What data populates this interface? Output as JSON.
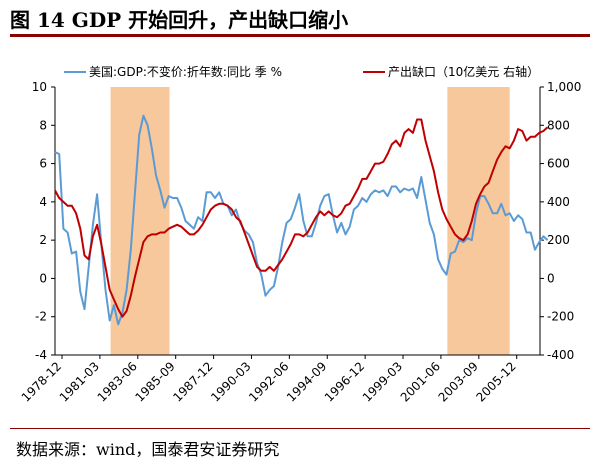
{
  "title": "图 14 GDP 开始回升，产出缺口缩小",
  "source": "数据来源：wind，国泰君安证券研究",
  "chart_data": {
    "type": "line",
    "title": "图 14 GDP 开始回升，产出缺口缩小",
    "legend_position": "top",
    "grid": false,
    "x_labels": [
      "1978-12",
      "1981-03",
      "1983-06",
      "1985-09",
      "1987-12",
      "1990-03",
      "1992-06",
      "1994-09",
      "1996-12",
      "1999-03",
      "2001-06",
      "2003-09",
      "2005-12"
    ],
    "x_range": [
      1978.5,
      2007.3
    ],
    "left_axis": {
      "ylim": [
        -4,
        10
      ],
      "ticks": [
        -4,
        -2,
        0,
        2,
        4,
        6,
        8,
        10
      ]
    },
    "right_axis": {
      "ylim": [
        -400,
        1000
      ],
      "ticks": [
        -400,
        -200,
        0,
        200,
        400,
        600,
        800,
        1000
      ]
    },
    "shaded_periods": [
      {
        "start": 1981.8,
        "end": 1985.3,
        "color": "#f7c89b"
      },
      {
        "start": 2001.8,
        "end": 2005.5,
        "color": "#f7c89b"
      }
    ],
    "series": [
      {
        "name": "美国:GDP:不变价:折年数:同比 季 %",
        "axis": "left",
        "color": "#5b9bd5",
        "points": [
          [
            1978.5,
            6.6
          ],
          [
            1978.75,
            6.5
          ],
          [
            1979.0,
            2.6
          ],
          [
            1979.25,
            2.4
          ],
          [
            1979.5,
            1.3
          ],
          [
            1979.75,
            1.4
          ],
          [
            1980.0,
            -0.7
          ],
          [
            1980.25,
            -1.6
          ],
          [
            1980.5,
            0.6
          ],
          [
            1980.75,
            2.8
          ],
          [
            1981.0,
            4.4
          ],
          [
            1981.25,
            1.8
          ],
          [
            1981.5,
            -0.6
          ],
          [
            1981.75,
            -2.2
          ],
          [
            1982.0,
            -1.4
          ],
          [
            1982.25,
            -2.4
          ],
          [
            1982.5,
            -1.8
          ],
          [
            1982.75,
            -0.6
          ],
          [
            1983.0,
            1.5
          ],
          [
            1983.25,
            4.5
          ],
          [
            1983.5,
            7.5
          ],
          [
            1983.75,
            8.5
          ],
          [
            1984.0,
            8.0
          ],
          [
            1984.25,
            6.8
          ],
          [
            1984.5,
            5.4
          ],
          [
            1984.75,
            4.6
          ],
          [
            1985.0,
            3.7
          ],
          [
            1985.25,
            4.3
          ],
          [
            1985.5,
            4.2
          ],
          [
            1985.75,
            4.2
          ],
          [
            1986.0,
            3.7
          ],
          [
            1986.25,
            3.0
          ],
          [
            1986.5,
            2.8
          ],
          [
            1986.75,
            2.6
          ],
          [
            1987.0,
            3.2
          ],
          [
            1987.25,
            3.0
          ],
          [
            1987.5,
            4.5
          ],
          [
            1987.75,
            4.5
          ],
          [
            1988.0,
            4.2
          ],
          [
            1988.25,
            4.5
          ],
          [
            1988.5,
            3.9
          ],
          [
            1988.75,
            3.8
          ],
          [
            1989.0,
            3.3
          ],
          [
            1989.25,
            3.6
          ],
          [
            1989.5,
            2.9
          ],
          [
            1989.75,
            2.5
          ],
          [
            1990.0,
            2.3
          ],
          [
            1990.25,
            1.9
          ],
          [
            1990.5,
            0.8
          ],
          [
            1990.75,
            0.2
          ],
          [
            1991.0,
            -0.9
          ],
          [
            1991.25,
            -0.6
          ],
          [
            1991.5,
            -0.4
          ],
          [
            1991.75,
            0.6
          ],
          [
            1992.0,
            1.9
          ],
          [
            1992.25,
            2.9
          ],
          [
            1992.5,
            3.1
          ],
          [
            1992.75,
            3.7
          ],
          [
            1993.0,
            4.4
          ],
          [
            1993.25,
            3.0
          ],
          [
            1993.5,
            2.2
          ],
          [
            1993.75,
            2.2
          ],
          [
            1994.0,
            2.9
          ],
          [
            1994.25,
            3.8
          ],
          [
            1994.5,
            4.3
          ],
          [
            1994.75,
            4.4
          ],
          [
            1995.0,
            3.3
          ],
          [
            1995.25,
            2.4
          ],
          [
            1995.5,
            2.9
          ],
          [
            1995.75,
            2.3
          ],
          [
            1996.0,
            2.7
          ],
          [
            1996.25,
            3.6
          ],
          [
            1996.5,
            3.8
          ],
          [
            1996.75,
            4.2
          ],
          [
            1997.0,
            4.0
          ],
          [
            1997.25,
            4.4
          ],
          [
            1997.5,
            4.6
          ],
          [
            1997.75,
            4.5
          ],
          [
            1998.0,
            4.6
          ],
          [
            1998.25,
            4.3
          ],
          [
            1998.5,
            4.8
          ],
          [
            1998.75,
            4.8
          ],
          [
            1999.0,
            4.5
          ],
          [
            1999.25,
            4.7
          ],
          [
            1999.5,
            4.6
          ],
          [
            1999.75,
            4.7
          ],
          [
            2000.0,
            4.2
          ],
          [
            2000.25,
            5.3
          ],
          [
            2000.5,
            4.1
          ],
          [
            2000.75,
            2.9
          ],
          [
            2001.0,
            2.3
          ],
          [
            2001.25,
            1.0
          ],
          [
            2001.5,
            0.5
          ],
          [
            2001.75,
            0.2
          ],
          [
            2002.0,
            1.3
          ],
          [
            2002.25,
            1.4
          ],
          [
            2002.5,
            2.0
          ],
          [
            2002.75,
            1.9
          ],
          [
            2003.0,
            2.1
          ],
          [
            2003.25,
            2.0
          ],
          [
            2003.5,
            3.4
          ],
          [
            2003.75,
            4.3
          ],
          [
            2004.0,
            4.3
          ],
          [
            2004.25,
            3.9
          ],
          [
            2004.5,
            3.4
          ],
          [
            2004.75,
            3.4
          ],
          [
            2005.0,
            3.9
          ],
          [
            2005.25,
            3.3
          ],
          [
            2005.5,
            3.4
          ],
          [
            2005.75,
            3.0
          ],
          [
            2006.0,
            3.3
          ],
          [
            2006.25,
            3.1
          ],
          [
            2006.5,
            2.4
          ],
          [
            2006.75,
            2.4
          ],
          [
            2007.0,
            1.5
          ],
          [
            2007.25,
            1.9
          ],
          [
            2007.5,
            2.2
          ],
          [
            2007.75,
            2.0
          ]
        ]
      },
      {
        "name": "产出缺口（10亿美元 右轴）",
        "axis": "right",
        "color": "#c00000",
        "points": [
          [
            1978.5,
            460
          ],
          [
            1978.75,
            420
          ],
          [
            1979.0,
            400
          ],
          [
            1979.25,
            380
          ],
          [
            1979.5,
            380
          ],
          [
            1979.75,
            340
          ],
          [
            1980.0,
            260
          ],
          [
            1980.25,
            120
          ],
          [
            1980.5,
            100
          ],
          [
            1980.75,
            220
          ],
          [
            1981.0,
            280
          ],
          [
            1981.25,
            180
          ],
          [
            1981.5,
            60
          ],
          [
            1981.75,
            -60
          ],
          [
            1982.0,
            -110
          ],
          [
            1982.25,
            -160
          ],
          [
            1982.5,
            -200
          ],
          [
            1982.75,
            -170
          ],
          [
            1983.0,
            -90
          ],
          [
            1983.25,
            10
          ],
          [
            1983.5,
            100
          ],
          [
            1983.75,
            190
          ],
          [
            1984.0,
            220
          ],
          [
            1984.25,
            230
          ],
          [
            1984.5,
            230
          ],
          [
            1984.75,
            240
          ],
          [
            1985.0,
            240
          ],
          [
            1985.25,
            260
          ],
          [
            1985.5,
            270
          ],
          [
            1985.75,
            280
          ],
          [
            1986.0,
            270
          ],
          [
            1986.25,
            250
          ],
          [
            1986.5,
            230
          ],
          [
            1986.75,
            230
          ],
          [
            1987.0,
            250
          ],
          [
            1987.25,
            280
          ],
          [
            1987.5,
            320
          ],
          [
            1987.75,
            360
          ],
          [
            1988.0,
            380
          ],
          [
            1988.25,
            390
          ],
          [
            1988.5,
            390
          ],
          [
            1988.75,
            380
          ],
          [
            1989.0,
            360
          ],
          [
            1989.25,
            320
          ],
          [
            1989.5,
            300
          ],
          [
            1989.75,
            240
          ],
          [
            1990.0,
            180
          ],
          [
            1990.25,
            120
          ],
          [
            1990.5,
            60
          ],
          [
            1990.75,
            40
          ],
          [
            1991.0,
            40
          ],
          [
            1991.25,
            60
          ],
          [
            1991.5,
            40
          ],
          [
            1991.75,
            70
          ],
          [
            1992.0,
            100
          ],
          [
            1992.25,
            140
          ],
          [
            1992.5,
            180
          ],
          [
            1992.75,
            230
          ],
          [
            1993.0,
            230
          ],
          [
            1993.25,
            220
          ],
          [
            1993.5,
            240
          ],
          [
            1993.75,
            280
          ],
          [
            1994.0,
            320
          ],
          [
            1994.25,
            350
          ],
          [
            1994.5,
            330
          ],
          [
            1994.75,
            350
          ],
          [
            1995.0,
            330
          ],
          [
            1995.25,
            320
          ],
          [
            1995.5,
            340
          ],
          [
            1995.75,
            380
          ],
          [
            1996.0,
            390
          ],
          [
            1996.25,
            430
          ],
          [
            1996.5,
            470
          ],
          [
            1996.75,
            520
          ],
          [
            1997.0,
            520
          ],
          [
            1997.25,
            560
          ],
          [
            1997.5,
            600
          ],
          [
            1997.75,
            600
          ],
          [
            1998.0,
            610
          ],
          [
            1998.25,
            650
          ],
          [
            1998.5,
            700
          ],
          [
            1998.75,
            720
          ],
          [
            1999.0,
            690
          ],
          [
            1999.25,
            760
          ],
          [
            1999.5,
            780
          ],
          [
            1999.75,
            760
          ],
          [
            2000.0,
            830
          ],
          [
            2000.25,
            830
          ],
          [
            2000.5,
            720
          ],
          [
            2000.75,
            640
          ],
          [
            2001.0,
            560
          ],
          [
            2001.25,
            450
          ],
          [
            2001.5,
            360
          ],
          [
            2001.75,
            310
          ],
          [
            2002.0,
            270
          ],
          [
            2002.25,
            230
          ],
          [
            2002.5,
            210
          ],
          [
            2002.75,
            200
          ],
          [
            2003.0,
            230
          ],
          [
            2003.25,
            300
          ],
          [
            2003.5,
            390
          ],
          [
            2003.75,
            440
          ],
          [
            2004.0,
            480
          ],
          [
            2004.25,
            500
          ],
          [
            2004.5,
            560
          ],
          [
            2004.75,
            620
          ],
          [
            2005.0,
            660
          ],
          [
            2005.25,
            690
          ],
          [
            2005.5,
            680
          ],
          [
            2005.75,
            720
          ],
          [
            2006.0,
            780
          ],
          [
            2006.25,
            770
          ],
          [
            2006.5,
            720
          ],
          [
            2006.75,
            740
          ],
          [
            2007.0,
            740
          ],
          [
            2007.25,
            760
          ],
          [
            2007.5,
            770
          ],
          [
            2007.75,
            790
          ]
        ]
      }
    ]
  }
}
